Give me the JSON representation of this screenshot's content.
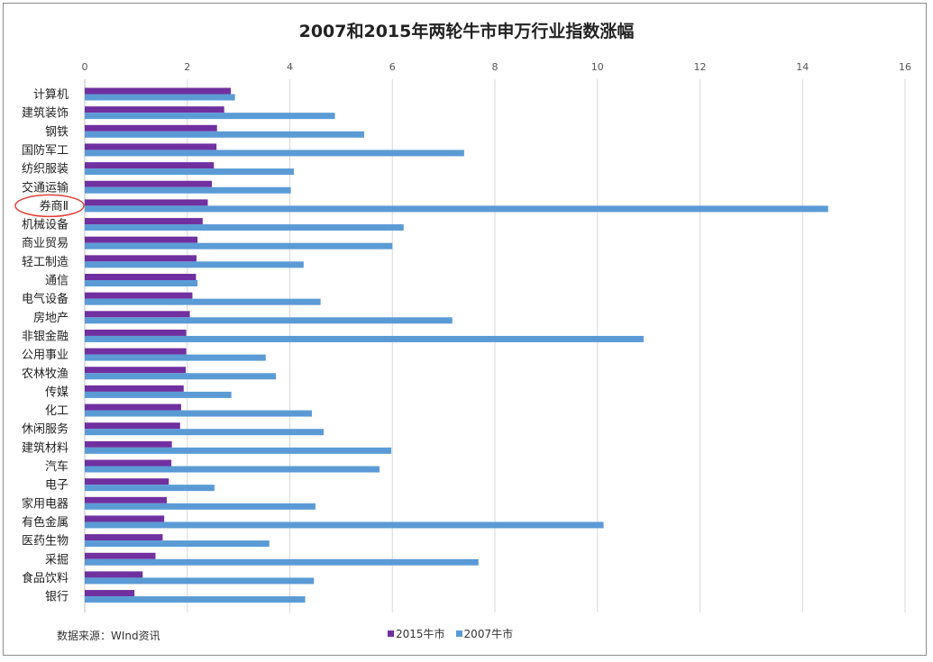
{
  "chart_data": {
    "type": "bar",
    "orientation": "horizontal",
    "title": "2007和2015年两轮牛市申万行业指数涨幅",
    "xlim": [
      0,
      16
    ],
    "xticks": [
      "0",
      "2",
      "4",
      "6",
      "8",
      "10",
      "12",
      "14",
      "16"
    ],
    "xaxis_position": "top",
    "grid": true,
    "legend_position": "bottom",
    "categories": [
      "计算机",
      "建筑装饰",
      "钢铁",
      "国防军工",
      "纺织服装",
      "交通运输",
      "券商Ⅱ",
      "机械设备",
      "商业贸易",
      "轻工制造",
      "通信",
      "电气设备",
      "房地产",
      "非银金融",
      "公用事业",
      "农林牧渔",
      "传媒",
      "化工",
      "休闲服务",
      "建筑材料",
      "汽车",
      "电子",
      "家用电器",
      "有色金属",
      "医药生物",
      "采掘",
      "食品饮料",
      "银行"
    ],
    "highlighted_category": "券商Ⅱ",
    "series": [
      {
        "name": "2015牛市",
        "color": "#7030a0",
        "values": [
          2.85,
          2.72,
          2.58,
          2.57,
          2.52,
          2.48,
          2.4,
          2.3,
          2.2,
          2.18,
          2.17,
          2.1,
          2.05,
          1.98,
          1.98,
          1.97,
          1.93,
          1.88,
          1.86,
          1.7,
          1.69,
          1.64,
          1.6,
          1.55,
          1.52,
          1.38,
          1.13,
          0.97
        ]
      },
      {
        "name": "2007牛市",
        "color": "#5b9bd5",
        "values": [
          2.93,
          4.88,
          5.45,
          7.4,
          4.08,
          4.02,
          14.5,
          6.22,
          6.0,
          4.27,
          2.2,
          4.6,
          7.17,
          10.9,
          3.53,
          3.73,
          2.86,
          4.43,
          4.66,
          5.98,
          5.75,
          2.53,
          4.5,
          10.12,
          3.6,
          7.68,
          4.47,
          4.3
        ]
      }
    ]
  },
  "source_note": "数据来源：WInd资讯",
  "legend": {
    "series_2015": "2015牛市",
    "series_2007": "2007牛市"
  }
}
